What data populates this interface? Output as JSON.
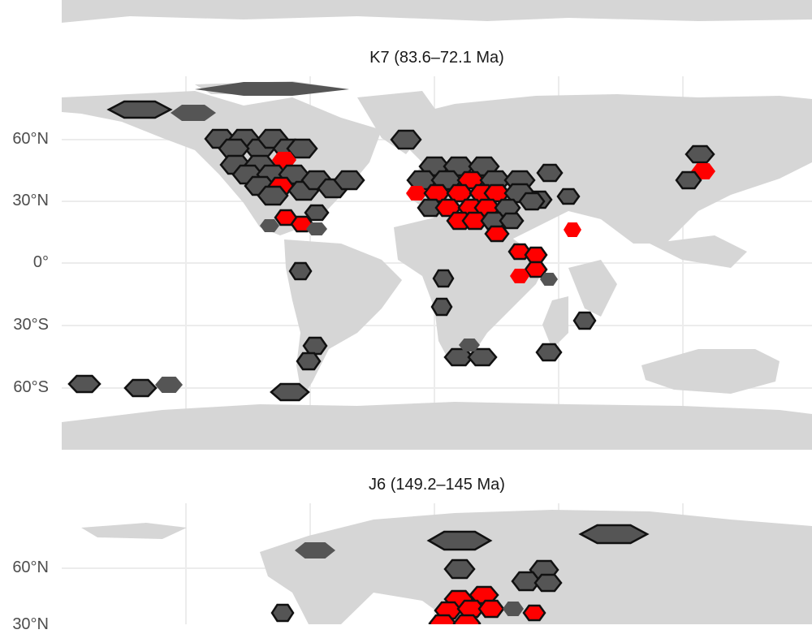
{
  "panels": [
    {
      "id": "top-partial",
      "title": "",
      "y_ticks": []
    },
    {
      "id": "k7",
      "title": "K7 (83.6–72.1 Ma)",
      "y_ticks": [
        "60°N",
        "30°N",
        "0°",
        "30°S",
        "60°S"
      ],
      "legend_colors": {
        "occupied": "#555555",
        "highlight": "#ff0000",
        "land": "#d9d9d9",
        "grid": "#eeeeee"
      }
    },
    {
      "id": "j6",
      "title": "J6 (149.2–145 Ma)",
      "y_ticks": [
        "60°N",
        "30°N"
      ]
    }
  ]
}
